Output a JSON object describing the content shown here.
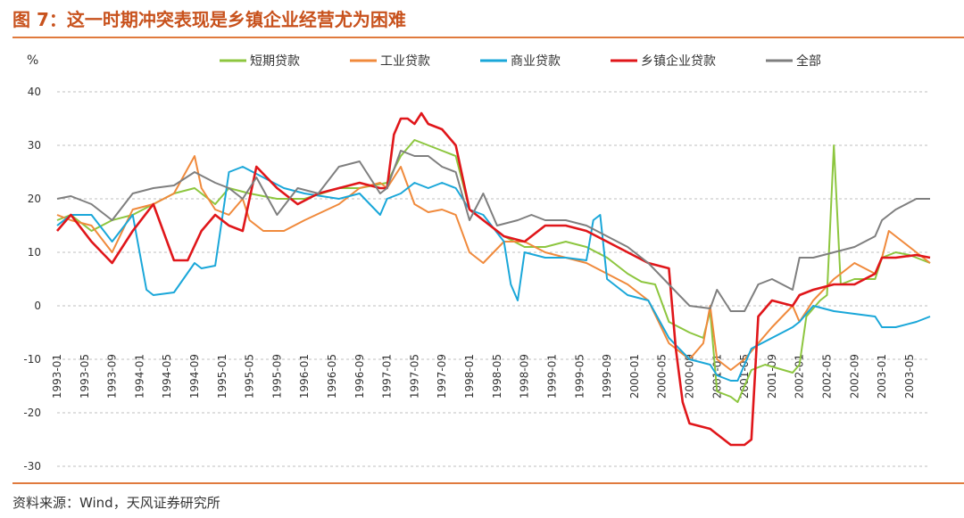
{
  "header": {
    "title": "图 7：这一时期冲突表现是乡镇企业经营尤为困难"
  },
  "footer": {
    "source": "资料来源：Wind，天风证券研究所"
  },
  "chart_data": {
    "type": "line",
    "title": "",
    "xlabel": "",
    "ylabel": "%",
    "ylim": [
      -30,
      40
    ],
    "yticks": [
      40,
      30,
      20,
      10,
      0,
      -10,
      -20,
      -30
    ],
    "grid": true,
    "legend_position": "top",
    "x_start": "1993-01",
    "x_end": "2003-08",
    "x_tick_labels": [
      "1993-01",
      "1993-05",
      "1993-09",
      "1994-01",
      "1994-05",
      "1994-09",
      "1995-01",
      "1995-05",
      "1995-09",
      "1996-01",
      "1996-05",
      "1996-09",
      "1997-01",
      "1997-05",
      "1997-09",
      "1998-01",
      "1998-05",
      "1998-09",
      "1999-01",
      "1999-05",
      "1999-09",
      "2000-01",
      "2000-05",
      "2000-09",
      "2001-01",
      "2001-05",
      "2001-09",
      "2002-01",
      "2002-05",
      "2002-09",
      "2003-01",
      "2003-05"
    ],
    "series": [
      {
        "name": "短期贷款",
        "color": "#8dc63f",
        "values": [
          [
            "1993-01",
            16
          ],
          [
            "1993-03",
            17
          ],
          [
            "1993-06",
            14
          ],
          [
            "1993-09",
            16
          ],
          [
            "1993-12",
            17
          ],
          [
            "1994-03",
            19
          ],
          [
            "1994-06",
            21
          ],
          [
            "1994-09",
            22
          ],
          [
            "1994-12",
            19
          ],
          [
            "1995-02",
            22
          ],
          [
            "1995-05",
            21
          ],
          [
            "1995-09",
            20
          ],
          [
            "1996-01",
            20
          ],
          [
            "1996-06",
            22
          ],
          [
            "1996-09",
            22
          ],
          [
            "1997-01",
            23
          ],
          [
            "1997-03",
            28
          ],
          [
            "1997-05",
            31
          ],
          [
            "1997-07",
            30
          ],
          [
            "1997-09",
            29
          ],
          [
            "1997-11",
            28
          ],
          [
            "1998-01",
            18
          ],
          [
            "1998-03",
            16
          ],
          [
            "1998-06",
            13
          ],
          [
            "1998-09",
            11
          ],
          [
            "1998-12",
            11
          ],
          [
            "1999-03",
            12
          ],
          [
            "1999-06",
            11
          ],
          [
            "1999-09",
            9
          ],
          [
            "1999-12",
            6
          ],
          [
            "2000-02",
            4.5
          ],
          [
            "2000-04",
            4
          ],
          [
            "2000-06",
            -3
          ],
          [
            "2000-09",
            -5
          ],
          [
            "2000-11",
            -6
          ],
          [
            "2000-12",
            -1
          ],
          [
            "2001-01",
            -16
          ],
          [
            "2001-03",
            -17
          ],
          [
            "2001-04",
            -18
          ],
          [
            "2001-06",
            -12
          ],
          [
            "2001-08",
            -11
          ],
          [
            "2001-12",
            -12.5
          ],
          [
            "2002-01",
            -11
          ],
          [
            "2002-02",
            -2
          ],
          [
            "2002-04",
            1
          ],
          [
            "2002-05",
            2
          ],
          [
            "2002-06",
            30
          ],
          [
            "2002-07",
            4
          ],
          [
            "2002-09",
            5
          ],
          [
            "2002-12",
            5
          ],
          [
            "2003-01",
            9
          ],
          [
            "2003-03",
            10
          ],
          [
            "2003-05",
            9.5
          ],
          [
            "2003-08",
            8
          ]
        ]
      },
      {
        "name": "工业贷款",
        "color": "#f08a3c",
        "values": [
          [
            "1993-01",
            17
          ],
          [
            "1993-03",
            16
          ],
          [
            "1993-06",
            15
          ],
          [
            "1993-09",
            10
          ],
          [
            "1993-12",
            18
          ],
          [
            "1994-03",
            19
          ],
          [
            "1994-06",
            21
          ],
          [
            "1994-09",
            28
          ],
          [
            "1994-10",
            22
          ],
          [
            "1994-12",
            18
          ],
          [
            "1995-02",
            17
          ],
          [
            "1995-04",
            20
          ],
          [
            "1995-05",
            16
          ],
          [
            "1995-07",
            14
          ],
          [
            "1995-10",
            14
          ],
          [
            "1996-01",
            16
          ],
          [
            "1996-06",
            19
          ],
          [
            "1996-09",
            22
          ],
          [
            "1996-12",
            23
          ],
          [
            "1997-01",
            22
          ],
          [
            "1997-03",
            26
          ],
          [
            "1997-05",
            19
          ],
          [
            "1997-07",
            17.5
          ],
          [
            "1997-09",
            18
          ],
          [
            "1997-11",
            17
          ],
          [
            "1998-01",
            10
          ],
          [
            "1998-03",
            8
          ],
          [
            "1998-06",
            12
          ],
          [
            "1998-09",
            12
          ],
          [
            "1998-12",
            10
          ],
          [
            "1999-03",
            9
          ],
          [
            "1999-06",
            8
          ],
          [
            "1999-09",
            6
          ],
          [
            "1999-12",
            4
          ],
          [
            "2000-03",
            1
          ],
          [
            "2000-06",
            -7
          ],
          [
            "2000-09",
            -10
          ],
          [
            "2000-11",
            -7
          ],
          [
            "2000-12",
            0
          ],
          [
            "2001-01",
            -10
          ],
          [
            "2001-03",
            -12
          ],
          [
            "2001-05",
            -10
          ],
          [
            "2001-07",
            -7
          ],
          [
            "2001-09",
            -4
          ],
          [
            "2001-12",
            0
          ],
          [
            "2002-01",
            -3
          ],
          [
            "2002-03",
            1
          ],
          [
            "2002-06",
            5
          ],
          [
            "2002-09",
            8
          ],
          [
            "2002-12",
            6
          ],
          [
            "2003-01",
            9
          ],
          [
            "2003-02",
            14
          ],
          [
            "2003-04",
            12
          ],
          [
            "2003-08",
            8
          ]
        ]
      },
      {
        "name": "商业贷款",
        "color": "#1aa7d9",
        "values": [
          [
            "1993-01",
            15
          ],
          [
            "1993-03",
            17
          ],
          [
            "1993-06",
            17
          ],
          [
            "1993-09",
            12
          ],
          [
            "1993-12",
            17
          ],
          [
            "1994-02",
            3
          ],
          [
            "1994-03",
            2
          ],
          [
            "1994-06",
            2.5
          ],
          [
            "1994-09",
            8
          ],
          [
            "1994-10",
            7
          ],
          [
            "1994-12",
            7.5
          ],
          [
            "1995-02",
            25
          ],
          [
            "1995-04",
            26
          ],
          [
            "1995-07",
            24
          ],
          [
            "1995-10",
            22
          ],
          [
            "1996-01",
            21
          ],
          [
            "1996-06",
            20
          ],
          [
            "1996-09",
            21
          ],
          [
            "1996-12",
            17
          ],
          [
            "1997-01",
            20
          ],
          [
            "1997-03",
            21
          ],
          [
            "1997-05",
            23
          ],
          [
            "1997-07",
            22
          ],
          [
            "1997-09",
            23
          ],
          [
            "1997-11",
            22
          ],
          [
            "1998-01",
            18
          ],
          [
            "1998-03",
            17
          ],
          [
            "1998-06",
            12
          ],
          [
            "1998-07",
            4
          ],
          [
            "1998-08",
            1
          ],
          [
            "1998-09",
            10
          ],
          [
            "1998-12",
            9
          ],
          [
            "1999-03",
            9
          ],
          [
            "1999-06",
            8.5
          ],
          [
            "1999-07",
            16
          ],
          [
            "1999-08",
            17
          ],
          [
            "1999-09",
            5
          ],
          [
            "1999-12",
            2
          ],
          [
            "2000-03",
            1
          ],
          [
            "2000-06",
            -6
          ],
          [
            "2000-09",
            -10
          ],
          [
            "2000-12",
            -11
          ],
          [
            "2001-01",
            -13
          ],
          [
            "2001-03",
            -14
          ],
          [
            "2001-04",
            -14
          ],
          [
            "2001-06",
            -8
          ],
          [
            "2001-09",
            -6
          ],
          [
            "2001-12",
            -4
          ],
          [
            "2002-01",
            -3
          ],
          [
            "2002-03",
            0
          ],
          [
            "2002-06",
            -1
          ],
          [
            "2002-09",
            -1.5
          ],
          [
            "2002-12",
            -2
          ],
          [
            "2003-01",
            -4
          ],
          [
            "2003-03",
            -4
          ],
          [
            "2003-06",
            -3
          ],
          [
            "2003-08",
            -2
          ]
        ]
      },
      {
        "name": "乡镇企业贷款",
        "color": "#e0161a",
        "values": [
          [
            "1993-01",
            14
          ],
          [
            "1993-03",
            17
          ],
          [
            "1993-06",
            12
          ],
          [
            "1993-09",
            8
          ],
          [
            "1993-12",
            14
          ],
          [
            "1994-03",
            19
          ],
          [
            "1994-06",
            8.5
          ],
          [
            "1994-08",
            8.5
          ],
          [
            "1994-10",
            14
          ],
          [
            "1994-12",
            17
          ],
          [
            "1995-02",
            15
          ],
          [
            "1995-04",
            14
          ],
          [
            "1995-06",
            26
          ],
          [
            "1995-09",
            22
          ],
          [
            "1995-12",
            19
          ],
          [
            "1996-03",
            21
          ],
          [
            "1996-06",
            22
          ],
          [
            "1996-09",
            23
          ],
          [
            "1996-12",
            22
          ],
          [
            "1997-01",
            22
          ],
          [
            "1997-02",
            32
          ],
          [
            "1997-03",
            35
          ],
          [
            "1997-04",
            35
          ],
          [
            "1997-05",
            34
          ],
          [
            "1997-06",
            36
          ],
          [
            "1997-07",
            34
          ],
          [
            "1997-09",
            33
          ],
          [
            "1997-11",
            30
          ],
          [
            "1998-01",
            18
          ],
          [
            "1998-03",
            16
          ],
          [
            "1998-06",
            13
          ],
          [
            "1998-09",
            12
          ],
          [
            "1998-12",
            15
          ],
          [
            "1999-03",
            15
          ],
          [
            "1999-06",
            14
          ],
          [
            "1999-09",
            12
          ],
          [
            "1999-12",
            10
          ],
          [
            "2000-03",
            8
          ],
          [
            "2000-06",
            7
          ],
          [
            "2000-07",
            -8
          ],
          [
            "2000-08",
            -18
          ],
          [
            "2000-09",
            -22
          ],
          [
            "2000-12",
            -23
          ],
          [
            "2001-01",
            -24
          ],
          [
            "2001-03",
            -26
          ],
          [
            "2001-05",
            -26
          ],
          [
            "2001-06",
            -25
          ],
          [
            "2001-07",
            -2
          ],
          [
            "2001-09",
            1
          ],
          [
            "2001-12",
            0
          ],
          [
            "2002-01",
            2
          ],
          [
            "2002-03",
            3
          ],
          [
            "2002-06",
            4
          ],
          [
            "2002-09",
            4
          ],
          [
            "2002-12",
            6
          ],
          [
            "2003-01",
            9
          ],
          [
            "2003-03",
            9
          ],
          [
            "2003-06",
            9.5
          ],
          [
            "2003-08",
            9
          ]
        ]
      },
      {
        "name": "全部",
        "color": "#7f7f7f",
        "values": [
          [
            "1993-01",
            20
          ],
          [
            "1993-03",
            20.5
          ],
          [
            "1993-06",
            19
          ],
          [
            "1993-09",
            16
          ],
          [
            "1993-12",
            21
          ],
          [
            "1994-03",
            22
          ],
          [
            "1994-06",
            22.5
          ],
          [
            "1994-09",
            25
          ],
          [
            "1994-12",
            23
          ],
          [
            "1995-02",
            22
          ],
          [
            "1995-04",
            20
          ],
          [
            "1995-06",
            24
          ],
          [
            "1995-09",
            17
          ],
          [
            "1995-12",
            22
          ],
          [
            "1996-03",
            21
          ],
          [
            "1996-06",
            26
          ],
          [
            "1996-09",
            27
          ],
          [
            "1996-12",
            21
          ],
          [
            "1997-01",
            22
          ],
          [
            "1997-03",
            29
          ],
          [
            "1997-05",
            28
          ],
          [
            "1997-07",
            28
          ],
          [
            "1997-09",
            26
          ],
          [
            "1997-11",
            25
          ],
          [
            "1998-01",
            16
          ],
          [
            "1998-03",
            21
          ],
          [
            "1998-05",
            15
          ],
          [
            "1998-08",
            16
          ],
          [
            "1998-10",
            17
          ],
          [
            "1998-12",
            16
          ],
          [
            "1999-03",
            16
          ],
          [
            "1999-06",
            15
          ],
          [
            "1999-09",
            13
          ],
          [
            "1999-12",
            11
          ],
          [
            "2000-03",
            8
          ],
          [
            "2000-06",
            4
          ],
          [
            "2000-09",
            0
          ],
          [
            "2000-12",
            -0.5
          ],
          [
            "2001-01",
            3
          ],
          [
            "2001-03",
            -1
          ],
          [
            "2001-05",
            -1
          ],
          [
            "2001-07",
            4
          ],
          [
            "2001-09",
            5
          ],
          [
            "2001-12",
            3
          ],
          [
            "2002-01",
            9
          ],
          [
            "2002-03",
            9
          ],
          [
            "2002-06",
            10
          ],
          [
            "2002-09",
            11
          ],
          [
            "2002-12",
            13
          ],
          [
            "2003-01",
            16
          ],
          [
            "2003-03",
            18
          ],
          [
            "2003-06",
            20
          ],
          [
            "2003-08",
            20
          ]
        ]
      }
    ]
  }
}
